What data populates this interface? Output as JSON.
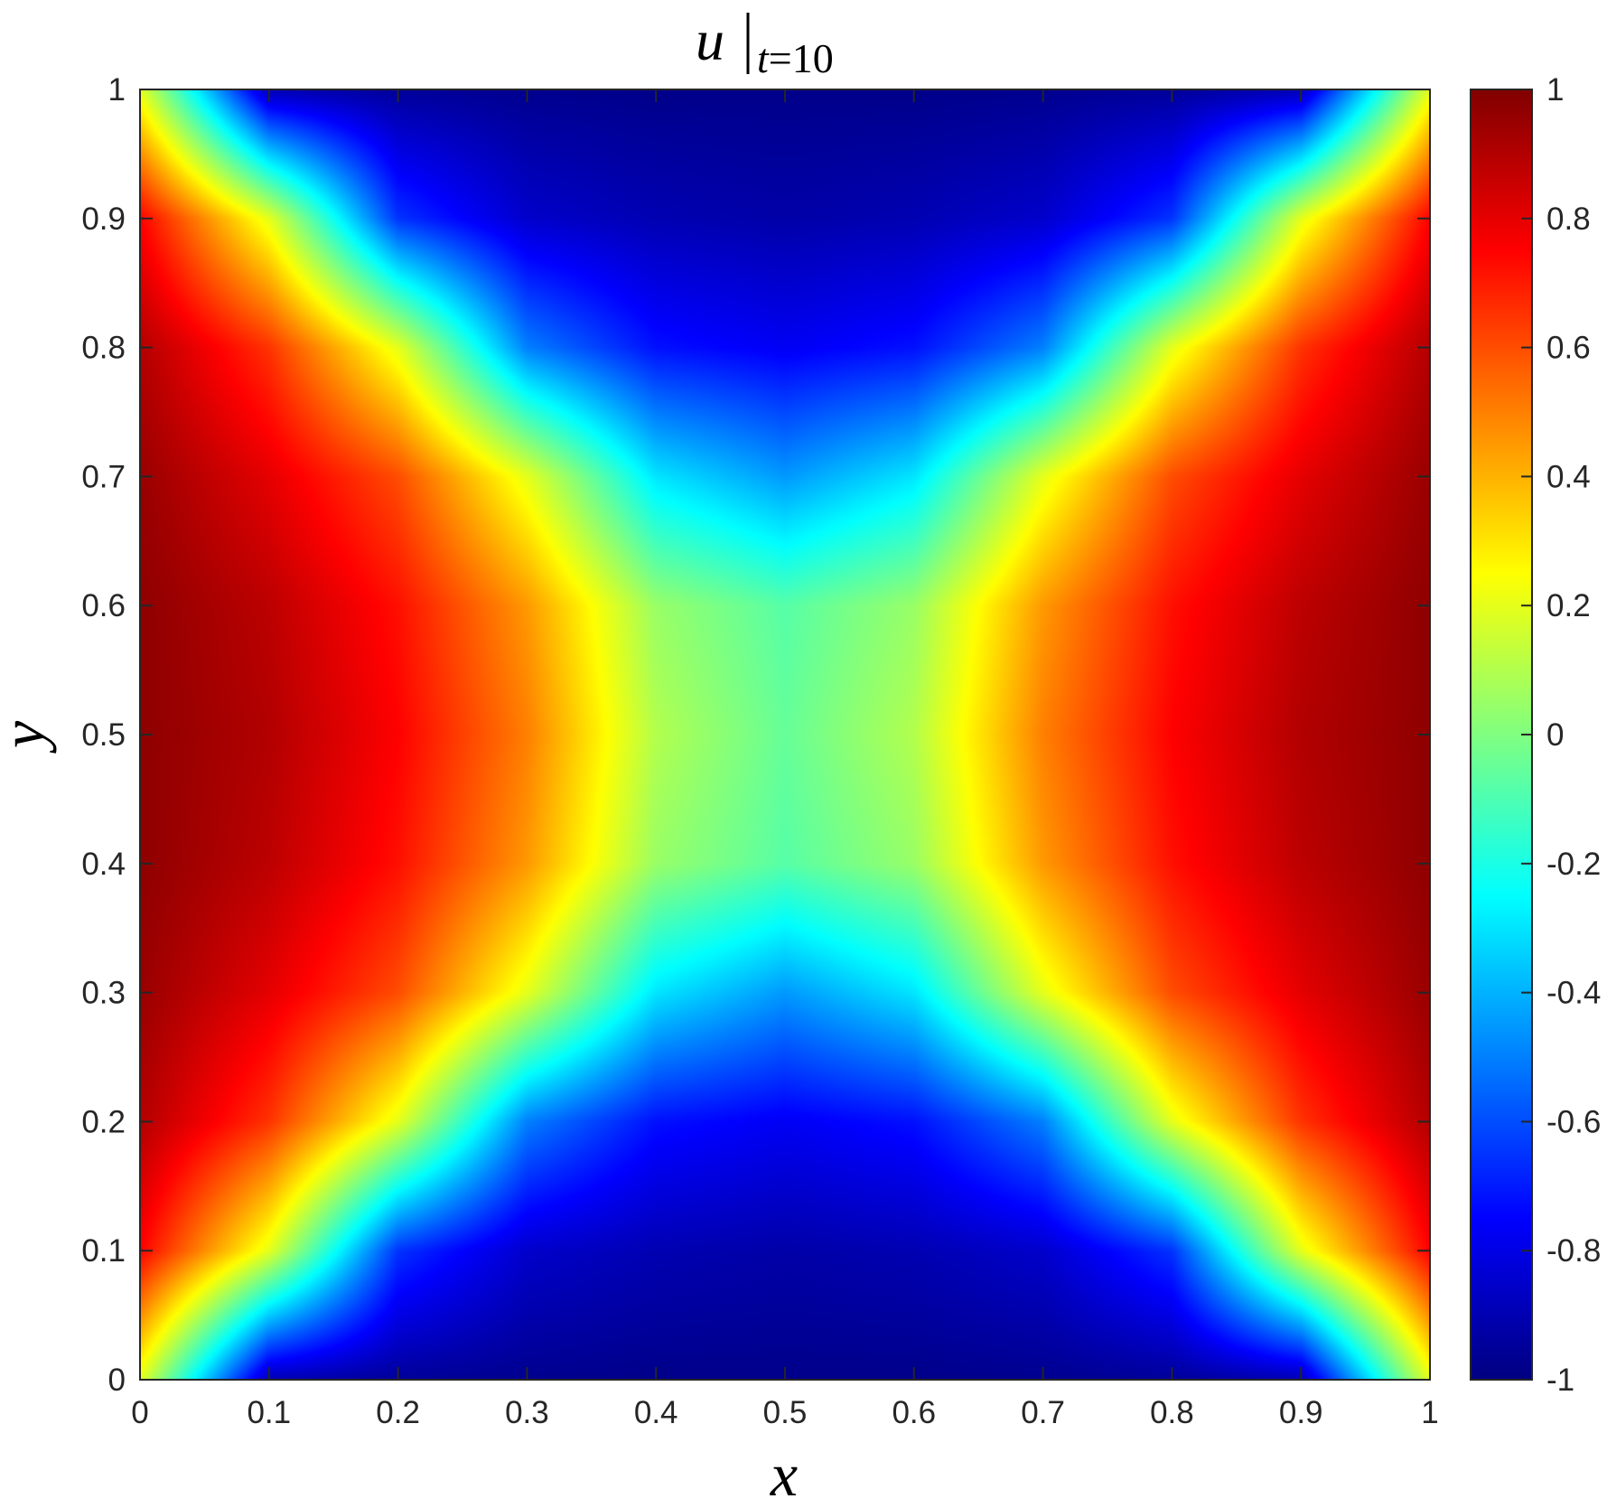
{
  "chart_data": {
    "type": "heatmap",
    "title": {
      "main": "u",
      "subscript_var": "t",
      "subscript_eq": "=",
      "subscript_val": "10"
    },
    "xlabel": "x",
    "ylabel": "y",
    "xlim": [
      0,
      1
    ],
    "ylim": [
      0,
      1
    ],
    "xticks": [
      "0",
      "0.1",
      "0.2",
      "0.3",
      "0.4",
      "0.5",
      "0.6",
      "0.7",
      "0.8",
      "0.9",
      "1"
    ],
    "yticks": [
      "0",
      "0.1",
      "0.2",
      "0.3",
      "0.4",
      "0.5",
      "0.6",
      "0.7",
      "0.8",
      "0.9",
      "1"
    ],
    "colorbar": {
      "colormap": "jet",
      "range": [
        -1,
        1
      ],
      "ticks": [
        "-1",
        "-0.8",
        "-0.6",
        "-0.4",
        "-0.2",
        "0",
        "0.2",
        "0.4",
        "0.6",
        "0.8",
        "1"
      ]
    },
    "field_samples": {
      "x": [
        0,
        0.1,
        0.2,
        0.3,
        0.4,
        0.5,
        0.6,
        0.7,
        0.8,
        0.9,
        1
      ],
      "y": [
        0,
        0.1,
        0.2,
        0.3,
        0.4,
        0.5,
        0.6,
        0.7,
        0.8,
        0.9,
        1
      ],
      "values_rows_by_y": [
        [
          0.2,
          -0.9,
          -0.95,
          -0.97,
          -0.98,
          -0.98,
          -0.98,
          -0.97,
          -0.95,
          -0.9,
          0.2
        ],
        [
          0.75,
          0.2,
          -0.65,
          -0.85,
          -0.9,
          -0.92,
          -0.9,
          -0.85,
          -0.65,
          0.2,
          0.75
        ],
        [
          0.9,
          0.65,
          0.2,
          -0.5,
          -0.72,
          -0.77,
          -0.72,
          -0.5,
          0.2,
          0.65,
          0.9
        ],
        [
          0.95,
          0.8,
          0.6,
          0.2,
          -0.3,
          -0.45,
          -0.3,
          0.2,
          0.6,
          0.8,
          0.95
        ],
        [
          0.97,
          0.88,
          0.72,
          0.45,
          0.05,
          -0.08,
          0.05,
          0.45,
          0.72,
          0.88,
          0.97
        ],
        [
          0.97,
          0.9,
          0.75,
          0.5,
          0.1,
          -0.05,
          0.1,
          0.5,
          0.75,
          0.9,
          0.97
        ],
        [
          0.97,
          0.88,
          0.72,
          0.45,
          0.05,
          -0.08,
          0.05,
          0.45,
          0.72,
          0.88,
          0.97
        ],
        [
          0.95,
          0.8,
          0.6,
          0.2,
          -0.3,
          -0.45,
          -0.3,
          0.2,
          0.6,
          0.8,
          0.95
        ],
        [
          0.9,
          0.65,
          0.2,
          -0.5,
          -0.72,
          -0.77,
          -0.72,
          -0.5,
          0.2,
          0.65,
          0.9
        ],
        [
          0.75,
          0.2,
          -0.65,
          -0.85,
          -0.9,
          -0.92,
          -0.9,
          -0.85,
          -0.65,
          0.2,
          0.75
        ],
        [
          0.2,
          -0.9,
          -0.95,
          -0.97,
          -0.98,
          -0.98,
          -0.98,
          -0.97,
          -0.95,
          -0.9,
          0.2
        ]
      ]
    },
    "grid": false,
    "legend": "none"
  }
}
